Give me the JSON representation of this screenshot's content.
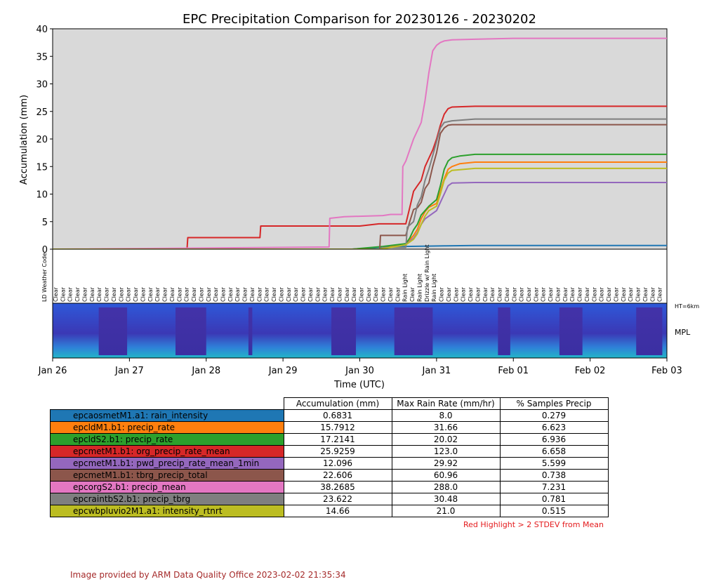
{
  "chart_data": {
    "type": "line",
    "title": "EPC Precipitation Comparison for 20230126 - 20230202",
    "ylabel": "Accumulation (mm)",
    "xlabel": "Time (UTC)",
    "ylim": [
      0,
      40
    ],
    "yticks": [
      0,
      5,
      10,
      15,
      20,
      25,
      30,
      35,
      40
    ],
    "xlim": [
      "2023-01-26",
      "2023-02-03"
    ],
    "xticks": [
      "Jan 26",
      "Jan 27",
      "Jan 28",
      "Jan 29",
      "Jan 30",
      "Jan 31",
      "Feb 01",
      "Feb 02",
      "Feb 03"
    ],
    "plot_background": "#d9d9d9",
    "x_unit": "days since 2023-01-26 00:00 UTC",
    "series": [
      {
        "name": "epcaosmetM1.a1: rain_intensity",
        "color": "#1f77b4",
        "x": [
          0,
          3.9,
          4.3,
          4.6,
          5.1,
          5.5,
          8
        ],
        "y": [
          0,
          0,
          0.35,
          0.5,
          0.6,
          0.68,
          0.68
        ]
      },
      {
        "name": "epcldM1.b1: precip_rate",
        "color": "#ff7f0e",
        "x": [
          0,
          4.25,
          4.4,
          4.6,
          4.65,
          4.7,
          4.75,
          4.8,
          4.85,
          4.9,
          5.0,
          5.05,
          5.1,
          5.15,
          5.2,
          5.3,
          5.5,
          8
        ],
        "y": [
          0,
          0,
          0.4,
          0.9,
          1.7,
          2.5,
          3.6,
          5.5,
          6.8,
          7.6,
          8.3,
          10.5,
          12.8,
          14.5,
          15.0,
          15.5,
          15.79,
          15.79
        ]
      },
      {
        "name": "epcldS2.b1: precip_rate",
        "color": "#2ca02c",
        "x": [
          0,
          3.9,
          4.3,
          4.6,
          4.65,
          4.7,
          4.75,
          4.8,
          4.85,
          4.9,
          5.0,
          5.05,
          5.1,
          5.15,
          5.2,
          5.3,
          5.5,
          8
        ],
        "y": [
          0,
          0,
          0.5,
          1.0,
          2.0,
          3.5,
          4.5,
          6.2,
          7.0,
          7.8,
          9.0,
          11.5,
          14.5,
          16.0,
          16.6,
          16.9,
          17.21,
          17.21
        ]
      },
      {
        "name": "epcmetM1.b1: org_precip_rate_mean",
        "color": "#d62728",
        "x": [
          0,
          1.75,
          1.76,
          2.7,
          2.71,
          4.0,
          4.25,
          4.6,
          4.65,
          4.7,
          4.75,
          4.8,
          4.85,
          4.9,
          4.95,
          5.0,
          5.05,
          5.1,
          5.15,
          5.2,
          5.5,
          8
        ],
        "y": [
          0,
          0,
          2.1,
          2.1,
          4.2,
          4.2,
          4.6,
          4.6,
          7.5,
          10.5,
          11.5,
          12.5,
          15.0,
          16.5,
          18.0,
          20.0,
          22.5,
          24.5,
          25.5,
          25.8,
          25.93,
          25.93
        ]
      },
      {
        "name": "epcmetM1.b1: pwd_precip_rate_mean_1min",
        "color": "#9467bd",
        "x": [
          0,
          4.25,
          4.4,
          4.6,
          4.7,
          4.75,
          4.8,
          4.85,
          4.9,
          5.0,
          5.05,
          5.1,
          5.15,
          5.2,
          5.5,
          8
        ],
        "y": [
          0,
          0,
          0.3,
          0.8,
          2.0,
          3.0,
          4.5,
          5.5,
          6.0,
          7.0,
          8.5,
          10.0,
          11.5,
          12.0,
          12.1,
          12.1
        ]
      },
      {
        "name": "epcmetM1.b1: tbrg_precip_total",
        "color": "#8c564b",
        "x": [
          0,
          4.26,
          4.27,
          4.6,
          4.65,
          4.7,
          4.75,
          4.8,
          4.85,
          4.9,
          4.95,
          5.0,
          5.05,
          5.1,
          5.15,
          5.2,
          5.5,
          8
        ],
        "y": [
          0,
          0,
          2.5,
          2.5,
          5.0,
          7.2,
          7.5,
          8.5,
          11.0,
          12.0,
          15.0,
          17.5,
          21.0,
          22.0,
          22.5,
          22.6,
          22.6,
          22.6
        ]
      },
      {
        "name": "epcorgS2.b1: precip_mean",
        "color": "#e377c2",
        "x": [
          0,
          3.6,
          3.61,
          3.8,
          4.3,
          4.4,
          4.55,
          4.56,
          4.6,
          4.7,
          4.8,
          4.85,
          4.9,
          4.95,
          5.0,
          5.05,
          5.1,
          5.2,
          5.5,
          6.0,
          8
        ],
        "y": [
          0,
          0.4,
          5.6,
          5.9,
          6.1,
          6.3,
          6.3,
          15.0,
          16.0,
          20.0,
          23.0,
          27.0,
          32.0,
          36.0,
          37.0,
          37.5,
          37.8,
          38.0,
          38.1,
          38.27,
          38.27
        ]
      },
      {
        "name": "epcraintbS2.b1: precip_tbrg",
        "color": "#7f7f7f",
        "x": [
          0,
          4.25,
          4.3,
          4.6,
          4.62,
          4.7,
          4.75,
          4.8,
          4.85,
          4.9,
          4.95,
          5.0,
          5.05,
          5.1,
          5.2,
          5.5,
          8
        ],
        "y": [
          0,
          0,
          0.3,
          0.3,
          4.0,
          5.0,
          8.0,
          9.5,
          12.5,
          14.5,
          17.0,
          19.5,
          22.0,
          23.0,
          23.3,
          23.62,
          23.62
        ]
      },
      {
        "name": "epcwbpluvio2M1.a1: intensity_rtnrt",
        "color": "#bcbd22",
        "x": [
          0,
          4.25,
          4.4,
          4.6,
          4.7,
          4.75,
          4.8,
          4.85,
          4.9,
          5.0,
          5.05,
          5.1,
          5.15,
          5.2,
          5.5,
          8
        ],
        "y": [
          0,
          0,
          0.3,
          0.8,
          1.8,
          2.8,
          4.5,
          6.0,
          7.0,
          7.8,
          10.0,
          12.5,
          13.8,
          14.3,
          14.66,
          14.66
        ]
      }
    ],
    "weather_code_panel": {
      "label": "LD Weather Code",
      "codes": [
        "Clear",
        "Rain Light",
        "Rain Light",
        "Drizzle w/ Rain Light",
        "Rain Light"
      ]
    },
    "mpl_panel": {
      "label": "MPL",
      "height_label": "HT=6km"
    }
  },
  "table": {
    "headers": [
      "Accumulation (mm)",
      "Max Rain Rate (mm/hr)",
      "% Samples Precip"
    ],
    "rows": [
      {
        "label": "epcaosmetM1.a1: rain_intensity",
        "color": "#1f77b4",
        "values": [
          "0.6831",
          "8.0",
          "0.279"
        ]
      },
      {
        "label": "epcldM1.b1: precip_rate",
        "color": "#ff7f0e",
        "values": [
          "15.7912",
          "31.66",
          "6.623"
        ]
      },
      {
        "label": "epcldS2.b1: precip_rate",
        "color": "#2ca02c",
        "values": [
          "17.2141",
          "20.02",
          "6.936"
        ]
      },
      {
        "label": "epcmetM1.b1: org_precip_rate_mean",
        "color": "#d62728",
        "values": [
          "25.9259",
          "123.0",
          "6.658"
        ]
      },
      {
        "label": "epcmetM1.b1: pwd_precip_rate_mean_1min",
        "color": "#9467bd",
        "values": [
          "12.096",
          "29.92",
          "5.599"
        ]
      },
      {
        "label": "epcmetM1.b1: tbrg_precip_total",
        "color": "#8c564b",
        "values": [
          "22.606",
          "60.96",
          "0.738"
        ]
      },
      {
        "label": "epcorgS2.b1: precip_mean",
        "color": "#e377c2",
        "values": [
          "38.2685",
          "288.0",
          "7.231"
        ]
      },
      {
        "label": "epcraintbS2.b1: precip_tbrg",
        "color": "#7f7f7f",
        "values": [
          "23.622",
          "30.48",
          "0.781"
        ]
      },
      {
        "label": "epcwbpluvio2M1.a1: intensity_rtnrt",
        "color": "#bcbd22",
        "values": [
          "14.66",
          "21.0",
          "0.515"
        ]
      }
    ],
    "note": "Red Highlight > 2 STDEV from Mean"
  },
  "footer": "Image provided by ARM Data Quality Office 2023-02-02 21:35:34"
}
